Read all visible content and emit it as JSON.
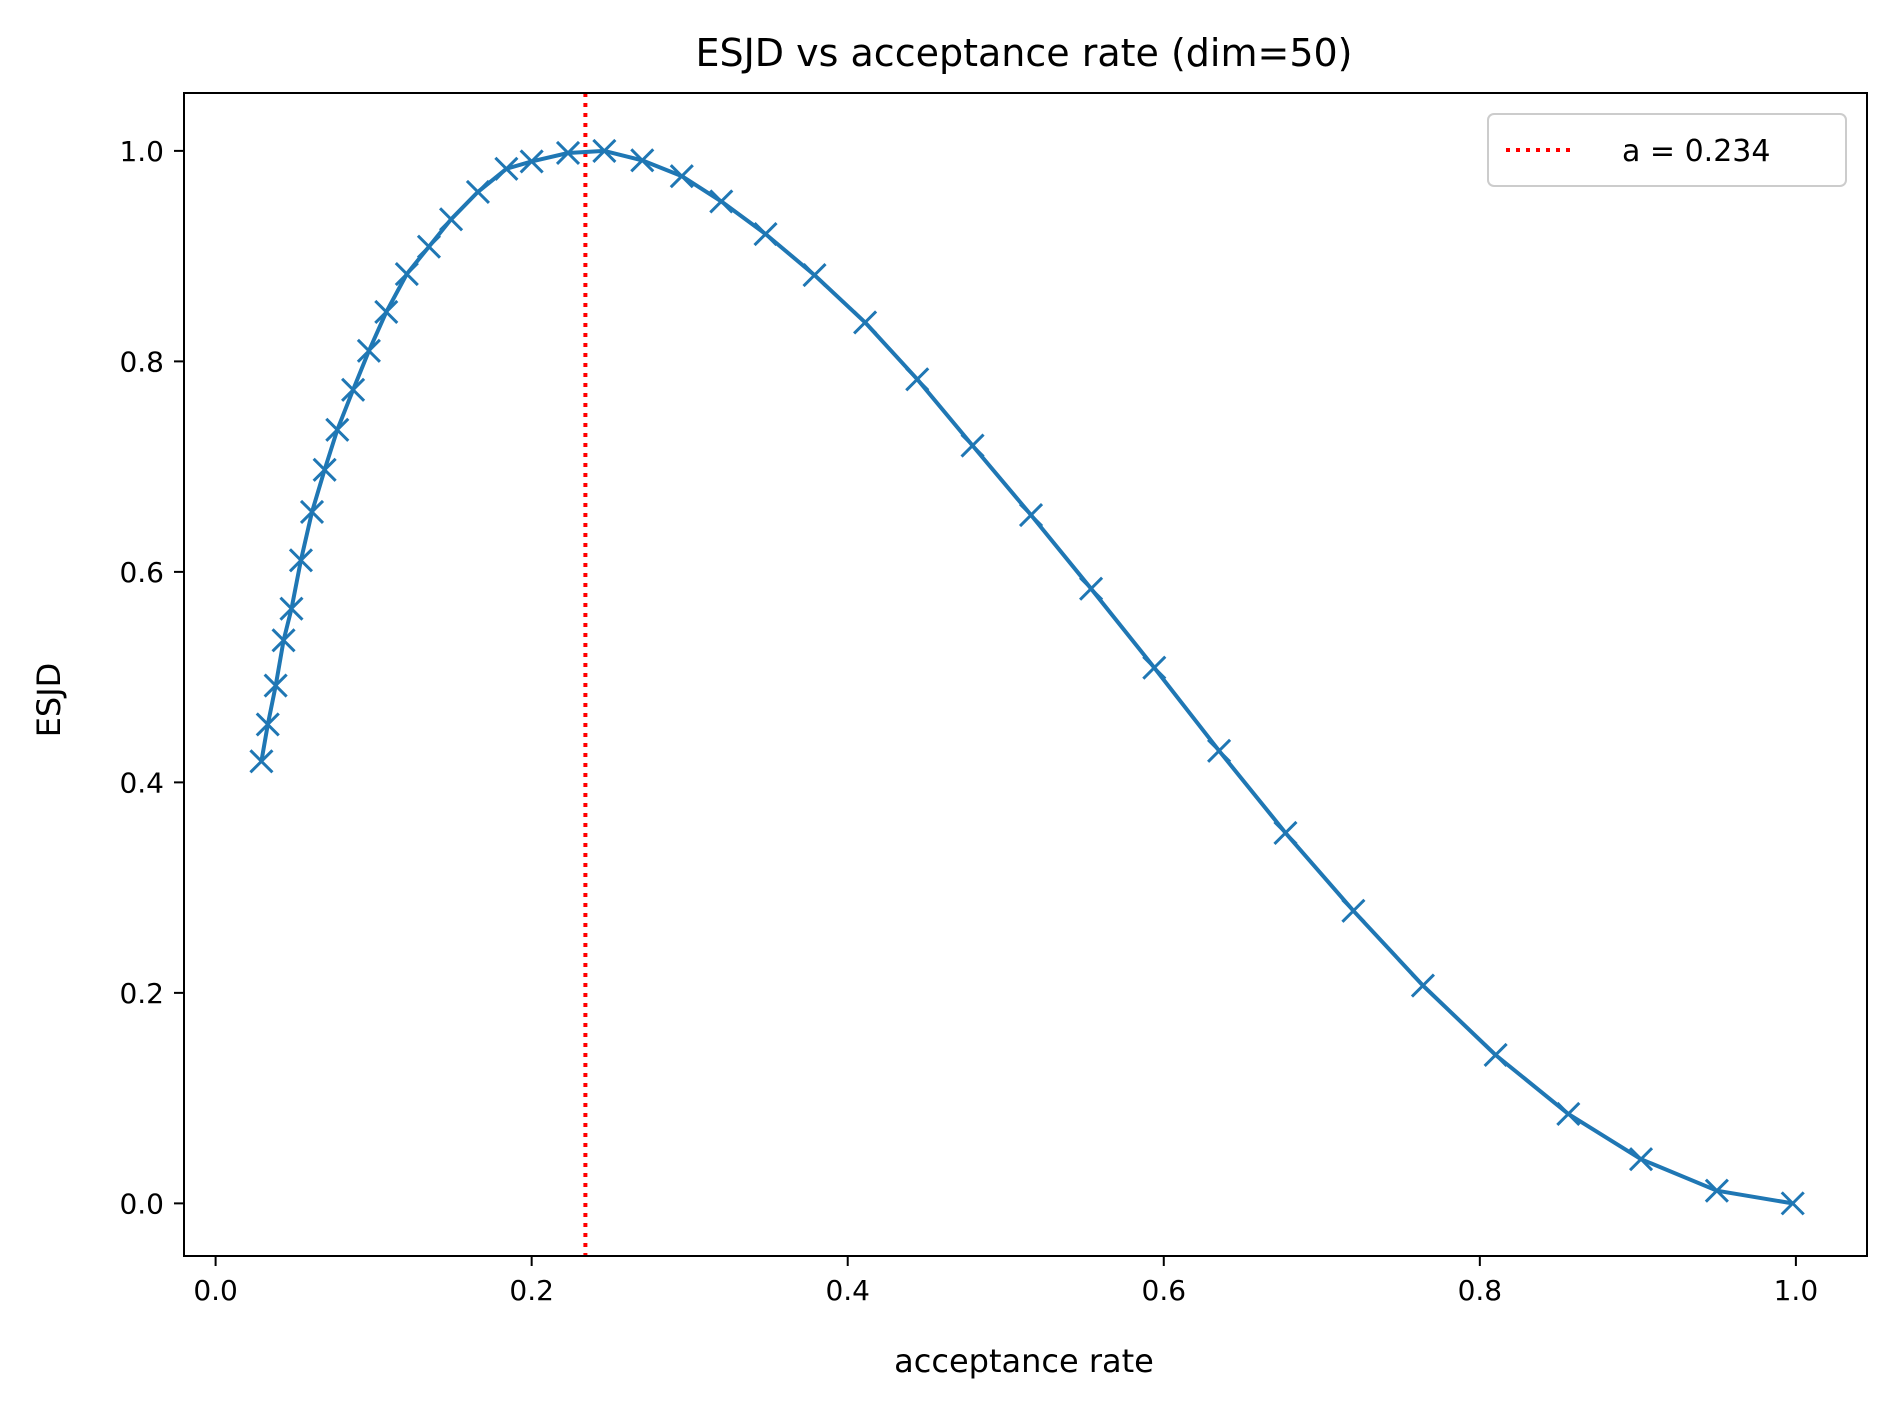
{
  "chart_data": {
    "type": "line",
    "title": "ESJD vs acceptance rate (dim=50)",
    "xlabel": "acceptance rate",
    "ylabel": "ESJD",
    "xlim": [
      -0.02,
      1.045
    ],
    "ylim": [
      -0.05,
      1.055
    ],
    "xticks": [
      "0.0",
      "0.2",
      "0.4",
      "0.6",
      "0.8",
      "1.0"
    ],
    "yticks": [
      "0.0",
      "0.2",
      "0.4",
      "0.6",
      "0.8",
      "1.0"
    ],
    "grid": false,
    "legend_position": "top-right",
    "series": [
      {
        "color": "#1f77b4",
        "marker": "x",
        "x": [
          0.029,
          0.033,
          0.038,
          0.043,
          0.048,
          0.054,
          0.061,
          0.069,
          0.077,
          0.087,
          0.097,
          0.108,
          0.121,
          0.135,
          0.149,
          0.166,
          0.184,
          0.2,
          0.223,
          0.246,
          0.27,
          0.295,
          0.32,
          0.348,
          0.379,
          0.411,
          0.444,
          0.479,
          0.516,
          0.554,
          0.594,
          0.635,
          0.677,
          0.72,
          0.764,
          0.81,
          0.856,
          0.902,
          0.95,
          0.998
        ],
        "y": [
          0.42,
          0.455,
          0.492,
          0.535,
          0.565,
          0.611,
          0.657,
          0.697,
          0.735,
          0.773,
          0.81,
          0.847,
          0.883,
          0.909,
          0.935,
          0.961,
          0.983,
          0.99,
          0.998,
          1.0,
          0.991,
          0.976,
          0.952,
          0.921,
          0.882,
          0.837,
          0.783,
          0.72,
          0.654,
          0.584,
          0.509,
          0.43,
          0.352,
          0.278,
          0.207,
          0.141,
          0.085,
          0.042,
          0.012,
          0.0
        ]
      },
      {
        "name": "a = 0.234",
        "color": "#ff0000",
        "style": "dotted",
        "type": "vline",
        "x": 0.234
      }
    ]
  }
}
